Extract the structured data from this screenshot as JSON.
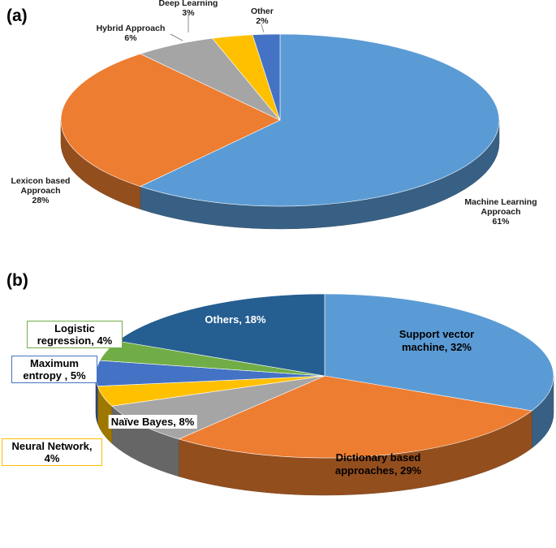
{
  "panel_a_label": "(a)",
  "panel_b_label": "(b)",
  "chart_data": [
    {
      "type": "pie",
      "panel": "(a)",
      "slices": [
        {
          "name": "Machine Learning Approach",
          "label_lines": [
            "Machine Learning",
            "Approach",
            "61%"
          ],
          "value": 61,
          "color": "#5B9BD5"
        },
        {
          "name": "Lexicon based Approach",
          "label_lines": [
            "Lexicon based",
            "Approach",
            "28%"
          ],
          "value": 28,
          "color": "#ED7D31"
        },
        {
          "name": "Hybrid Approach",
          "label_lines": [
            "Hybrid Approach",
            "6%"
          ],
          "value": 6,
          "color": "#A5A5A5"
        },
        {
          "name": "Deep Learning",
          "label_lines": [
            "Deep Learning",
            "3%"
          ],
          "value": 3,
          "color": "#FFC000"
        },
        {
          "name": "Other",
          "label_lines": [
            "Other",
            "2%"
          ],
          "value": 2,
          "color": "#4472C4"
        }
      ]
    },
    {
      "type": "pie",
      "panel": "(b)",
      "slices": [
        {
          "name": "Support vector machine",
          "label_lines": [
            "Support vector",
            "machine, 32%"
          ],
          "value": 32,
          "color": "#5B9BD5"
        },
        {
          "name": "Dictionary based approaches",
          "label_lines": [
            "Dictionary based",
            "approaches, 29%"
          ],
          "value": 29,
          "color": "#ED7D31"
        },
        {
          "name": "Naïve Bayes",
          "label_lines": [
            "Naïve Bayes, 8%"
          ],
          "value": 8,
          "color": "#A5A5A5"
        },
        {
          "name": "Neural Network",
          "label_lines": [
            "Neural Network,",
            "4%"
          ],
          "value": 4,
          "color": "#FFC000"
        },
        {
          "name": "Maximum entropy",
          "label_lines": [
            "Maximum",
            "entropy , 5%"
          ],
          "value": 5,
          "color": "#4472C4"
        },
        {
          "name": "Logistic regression",
          "label_lines": [
            "Logistic",
            "regression, 4%"
          ],
          "value": 4,
          "color": "#70AD47"
        },
        {
          "name": "Others",
          "label_lines": [
            "Others, 18%"
          ],
          "value": 18,
          "color": "#255E91"
        }
      ]
    }
  ]
}
